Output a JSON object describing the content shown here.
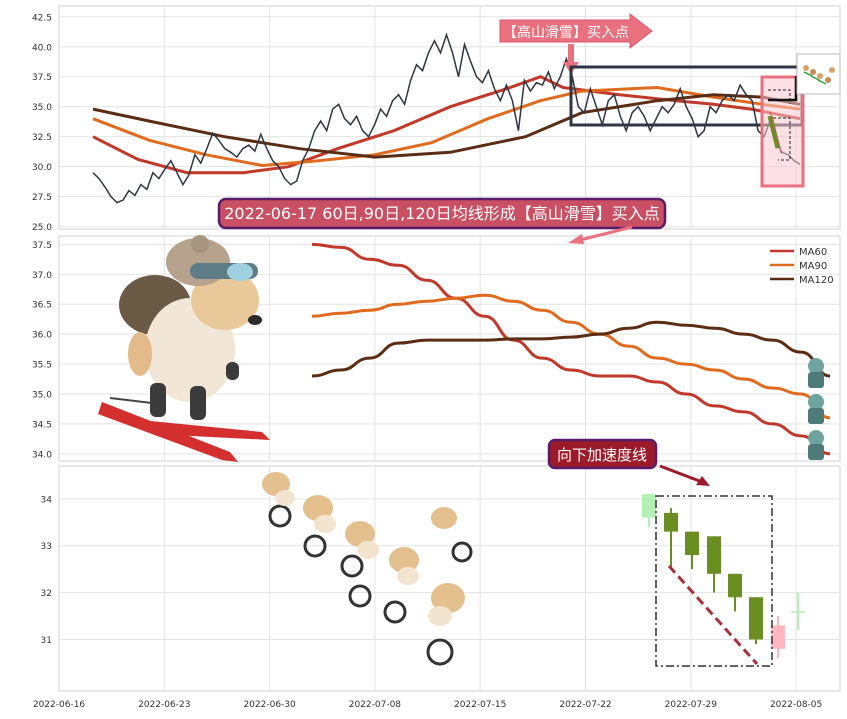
{
  "panels": {
    "top": {
      "yticks": [
        25.0,
        27.5,
        30.0,
        32.5,
        35.0,
        37.5,
        40.0,
        42.5
      ],
      "ylim": [
        24.8,
        43.4
      ]
    },
    "middle": {
      "yticks": [
        34.0,
        34.5,
        35.0,
        35.5,
        36.0,
        36.5,
        37.0,
        37.5
      ],
      "ylim": [
        33.88,
        37.64
      ]
    },
    "bottom": {
      "yticks": [
        31,
        32,
        33,
        34
      ],
      "ylim": [
        29.9,
        34.7
      ]
    }
  },
  "xaxis": {
    "tick_labels": [
      "2022-06-16",
      "2022-06-23",
      "2022-06-30",
      "2022-07-08",
      "2022-07-15",
      "2022-07-22",
      "2022-07-29",
      "2022-08-05"
    ]
  },
  "annotations": {
    "top_signal": "【高山滑雪】买入点",
    "middle_banner": "2022-06-17 60日,90日,120日均线形成【高山滑雪】买入点",
    "decel_label": "向下加速度线"
  },
  "legend": {
    "items": [
      {
        "label": "MA60",
        "color": "#c0392b"
      },
      {
        "label": "MA90",
        "color": "#e06b1f"
      },
      {
        "label": "MA120",
        "color": "#5a2d14"
      }
    ]
  },
  "colors": {
    "price": "#2f3542",
    "ma60": "#c0392b",
    "ma90": "#e06b1f",
    "ma120": "#5a2d14",
    "candle_down": "#6b8e23",
    "candle_up_light": "#ffb6c1",
    "candle_down_light": "#b4f0b4",
    "signal_pink": "#e8707f",
    "banner_fill": "#c94f63",
    "banner_border": "#5b1b6b",
    "decel_fill": "#9b1b2b"
  },
  "icons": {
    "skier": "skiing-dog-icon",
    "cyclists": "cycling-dogs-icon",
    "soldiers": "soldier-figures-icon",
    "thumbnail": "zoom-thumbnail-icon"
  },
  "chart_data": [
    {
      "type": "line",
      "panel": "top",
      "series": [
        {
          "name": "Price",
          "x_index_start": 0,
          "values": [
            29.5,
            29.0,
            28.3,
            27.5,
            27.0,
            27.2,
            28.0,
            27.6,
            28.5,
            28.1,
            29.5,
            29.0,
            29.8,
            30.5,
            29.5,
            28.5,
            29.3,
            31.0,
            30.3,
            31.5,
            32.8,
            32.2,
            31.5,
            31.2,
            30.8,
            31.5,
            31.8,
            31.3,
            32.7,
            31.5,
            30.5,
            30.0,
            29.0,
            28.5,
            28.8,
            30.5,
            31.5,
            33.0,
            33.8,
            33.0,
            34.8,
            35.2,
            34.0,
            33.5,
            34.2,
            33.0,
            32.5,
            33.5,
            34.8,
            34.2,
            35.5,
            36.0,
            35.2,
            37.2,
            38.5,
            38.0,
            39.5,
            40.5,
            39.5,
            41.0,
            39.5,
            37.5,
            40.2,
            38.8,
            37.5,
            37.0,
            38.0,
            36.5,
            35.5,
            36.8,
            35.5,
            33.0,
            37.2,
            36.3,
            37.0,
            36.8,
            37.9,
            36.5,
            37.5,
            39.0,
            37.5,
            35.0,
            34.5,
            36.5,
            35.0,
            33.5,
            35.5,
            36.0,
            34.2,
            33.0,
            34.5,
            35.0,
            34.2,
            33.0,
            34.0,
            35.0,
            34.5,
            35.2,
            36.5,
            35.0,
            34.0,
            32.5,
            33.0,
            35.0,
            34.5,
            35.5,
            36.0,
            35.5,
            36.8,
            36.0,
            35.5,
            33.0,
            32.5,
            33.8,
            32.0,
            31.2,
            31.0,
            30.5,
            30.2
          ]
        },
        {
          "name": "MA60",
          "points": [
            [
              0,
              32.5
            ],
            [
              12,
              30.6
            ],
            [
              25,
              29.5
            ],
            [
              40,
              29.5
            ],
            [
              52,
              30.0
            ],
            [
              65,
              31.5
            ],
            [
              80,
              33.0
            ],
            [
              95,
              35.0
            ],
            [
              110,
              36.5
            ],
            [
              119,
              37.5
            ],
            [
              125,
              36.6
            ],
            [
              140,
              36.0
            ],
            [
              155,
              35.5
            ],
            [
              165,
              35.2
            ],
            [
              175,
              34.8
            ],
            [
              188,
              34.0
            ]
          ]
        },
        {
          "name": "MA90",
          "points": [
            [
              0,
              34.0
            ],
            [
              15,
              32.2
            ],
            [
              30,
              31.0
            ],
            [
              45,
              30.1
            ],
            [
              60,
              30.5
            ],
            [
              75,
              31.0
            ],
            [
              90,
              32.0
            ],
            [
              105,
              34.0
            ],
            [
              119,
              35.5
            ],
            [
              130,
              36.3
            ],
            [
              150,
              36.6
            ],
            [
              165,
              35.8
            ],
            [
              178,
              35.2
            ],
            [
              188,
              34.8
            ]
          ]
        },
        {
          "name": "MA120",
          "points": [
            [
              0,
              34.8
            ],
            [
              15,
              33.8
            ],
            [
              35,
              32.5
            ],
            [
              55,
              31.5
            ],
            [
              75,
              30.8
            ],
            [
              95,
              31.2
            ],
            [
              115,
              32.5
            ],
            [
              130,
              34.5
            ],
            [
              150,
              35.5
            ],
            [
              165,
              36.0
            ],
            [
              178,
              35.8
            ],
            [
              188,
              35.2
            ]
          ]
        }
      ],
      "yticks": [
        25.0,
        27.5,
        30.0,
        32.5,
        35.0,
        37.5,
        40.0,
        42.5
      ],
      "ylim": [
        24.8,
        43.4
      ]
    },
    {
      "type": "line",
      "panel": "middle",
      "series": [
        {
          "name": "MA60",
          "values": [
            37.5,
            37.45,
            37.25,
            37.15,
            36.9,
            36.6,
            36.3,
            35.9,
            35.6,
            35.4,
            35.3,
            35.3,
            35.2,
            35.0,
            34.8,
            34.7,
            34.5,
            34.3,
            34.0
          ]
        },
        {
          "name": "MA90",
          "values": [
            36.3,
            36.35,
            36.4,
            36.5,
            36.55,
            36.6,
            36.65,
            36.55,
            36.4,
            36.2,
            36.0,
            35.8,
            35.6,
            35.5,
            35.4,
            35.25,
            35.1,
            35.0,
            34.6
          ]
        },
        {
          "name": "MA120",
          "values": [
            35.3,
            35.4,
            35.6,
            35.85,
            35.9,
            35.9,
            35.9,
            35.92,
            35.92,
            35.95,
            36.0,
            36.1,
            36.2,
            36.15,
            36.1,
            36.0,
            35.9,
            35.7,
            35.3
          ]
        }
      ],
      "yticks": [
        34.0,
        34.5,
        35.0,
        35.5,
        36.0,
        36.5,
        37.0,
        37.5
      ],
      "ylim": [
        33.88,
        37.64
      ]
    },
    {
      "type": "candlestick",
      "panel": "bottom",
      "candles": [
        {
          "open": 34.1,
          "close": 33.6,
          "high": 34.1,
          "low": 33.4,
          "color": "light_down"
        },
        {
          "open": 33.7,
          "close": 33.3,
          "high": 33.8,
          "low": 32.5,
          "color": "down"
        },
        {
          "open": 33.3,
          "close": 32.8,
          "high": 33.3,
          "low": 32.5,
          "color": "down"
        },
        {
          "open": 33.2,
          "close": 32.4,
          "high": 33.2,
          "low": 32.0,
          "color": "down"
        },
        {
          "open": 32.4,
          "close": 31.9,
          "high": 32.4,
          "low": 31.6,
          "color": "down"
        },
        {
          "open": 31.9,
          "close": 31.0,
          "high": 31.9,
          "low": 30.9,
          "color": "down"
        },
        {
          "open": 30.8,
          "close": 31.3,
          "high": 31.5,
          "low": 30.6,
          "color": "light_up"
        },
        {
          "open": 31.6,
          "close": 31.6,
          "high": 32.0,
          "low": 31.2,
          "color": "light_down"
        }
      ],
      "yticks": [
        31,
        32,
        33,
        34
      ],
      "ylim": [
        29.9,
        34.7
      ]
    }
  ]
}
